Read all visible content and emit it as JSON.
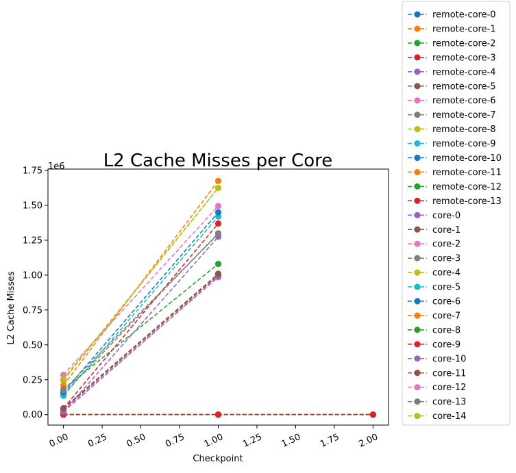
{
  "chart_data": {
    "type": "line",
    "title": "L2 Cache Misses per Core",
    "xlabel": "Checkpoint",
    "ylabel": "L2 Cache Misses",
    "y_offset_label": "1e6",
    "xlim": [
      -0.1,
      2.1
    ],
    "ylim": [
      -75000,
      1760000
    ],
    "x_ticks": [
      0.0,
      0.25,
      0.5,
      0.75,
      1.0,
      1.25,
      1.5,
      1.75,
      2.0
    ],
    "x_tick_labels": [
      "0.00",
      "0.25",
      "0.50",
      "0.75",
      "1.00",
      "1.25",
      "1.50",
      "1.75",
      "2.00"
    ],
    "y_ticks": [
      0,
      250000,
      500000,
      750000,
      1000000,
      1250000,
      1500000,
      1750000
    ],
    "y_tick_labels": [
      "0.00",
      "0.25",
      "0.50",
      "0.75",
      "1.00",
      "1.25",
      "1.50",
      "1.75"
    ],
    "grid": false,
    "legend_position": "outside-right",
    "line_style": "dashed",
    "marker": "circle",
    "series": [
      {
        "name": "remote-core-0",
        "color": "#1f77b4",
        "x": [
          0,
          1,
          2
        ],
        "y": [
          0,
          0,
          0
        ]
      },
      {
        "name": "remote-core-1",
        "color": "#ff7f0e",
        "x": [
          0,
          1,
          2
        ],
        "y": [
          0,
          0,
          0
        ]
      },
      {
        "name": "remote-core-2",
        "color": "#2ca02c",
        "x": [
          0,
          1,
          2
        ],
        "y": [
          0,
          0,
          0
        ]
      },
      {
        "name": "remote-core-3",
        "color": "#d62728",
        "x": [
          0,
          1,
          2
        ],
        "y": [
          0,
          0,
          0
        ]
      },
      {
        "name": "remote-core-4",
        "color": "#9467bd",
        "x": [
          0,
          1,
          2
        ],
        "y": [
          0,
          0,
          0
        ]
      },
      {
        "name": "remote-core-5",
        "color": "#8c564b",
        "x": [
          0,
          1,
          2
        ],
        "y": [
          0,
          0,
          0
        ]
      },
      {
        "name": "remote-core-6",
        "color": "#e377c2",
        "x": [
          0,
          1,
          2
        ],
        "y": [
          0,
          0,
          0
        ]
      },
      {
        "name": "remote-core-7",
        "color": "#7f7f7f",
        "x": [
          0,
          1,
          2
        ],
        "y": [
          0,
          0,
          0
        ]
      },
      {
        "name": "remote-core-8",
        "color": "#bcbd22",
        "x": [
          0,
          1,
          2
        ],
        "y": [
          0,
          0,
          0
        ]
      },
      {
        "name": "remote-core-9",
        "color": "#17becf",
        "x": [
          0,
          1,
          2
        ],
        "y": [
          0,
          0,
          0
        ]
      },
      {
        "name": "remote-core-10",
        "color": "#1f77b4",
        "x": [
          0,
          1,
          2
        ],
        "y": [
          0,
          0,
          0
        ]
      },
      {
        "name": "remote-core-11",
        "color": "#ff7f0e",
        "x": [
          0,
          1,
          2
        ],
        "y": [
          0,
          0,
          0
        ]
      },
      {
        "name": "remote-core-12",
        "color": "#2ca02c",
        "x": [
          0,
          1,
          2
        ],
        "y": [
          0,
          0,
          0
        ]
      },
      {
        "name": "remote-core-13",
        "color": "#d62728",
        "x": [
          0,
          1,
          2
        ],
        "y": [
          0,
          0,
          0
        ]
      },
      {
        "name": "core-0",
        "color": "#9467bd",
        "x": [
          0,
          1
        ],
        "y": [
          20000,
          1275000
        ]
      },
      {
        "name": "core-1",
        "color": "#8c564b",
        "x": [
          0,
          1
        ],
        "y": [
          40000,
          1000000
        ]
      },
      {
        "name": "core-2",
        "color": "#e377c2",
        "x": [
          0,
          1
        ],
        "y": [
          30000,
          985000
        ]
      },
      {
        "name": "core-3",
        "color": "#7f7f7f",
        "x": [
          0,
          1
        ],
        "y": [
          150000,
          1300000
        ]
      },
      {
        "name": "core-4",
        "color": "#bcbd22",
        "x": [
          0,
          1
        ],
        "y": [
          245000,
          1625000
        ]
      },
      {
        "name": "core-5",
        "color": "#17becf",
        "x": [
          0,
          1
        ],
        "y": [
          135000,
          1420000
        ]
      },
      {
        "name": "core-6",
        "color": "#1f77b4",
        "x": [
          0,
          1
        ],
        "y": [
          160000,
          1450000
        ]
      },
      {
        "name": "core-7",
        "color": "#ff7f0e",
        "x": [
          0,
          1
        ],
        "y": [
          210000,
          1675000
        ]
      },
      {
        "name": "core-8",
        "color": "#2ca02c",
        "x": [
          0,
          1
        ],
        "y": [
          180000,
          1080000
        ]
      },
      {
        "name": "core-9",
        "color": "#d62728",
        "x": [
          0,
          1
        ],
        "y": [
          45000,
          1370000
        ]
      },
      {
        "name": "core-10",
        "color": "#9467bd",
        "x": [
          0,
          1
        ],
        "y": [
          20000,
          990000
        ]
      },
      {
        "name": "core-11",
        "color": "#8c564b",
        "x": [
          0,
          1
        ],
        "y": [
          45000,
          1010000
        ]
      },
      {
        "name": "core-12",
        "color": "#e377c2",
        "x": [
          0,
          1
        ],
        "y": [
          285000,
          1495000
        ]
      },
      {
        "name": "core-13",
        "color": "#7f7f7f",
        "x": [
          0,
          1
        ],
        "y": [
          175000,
          1295000
        ]
      },
      {
        "name": "core-14",
        "color": "#bcbd22",
        "x": [
          0,
          1
        ],
        "y": [
          255000,
          1625000
        ]
      }
    ]
  }
}
